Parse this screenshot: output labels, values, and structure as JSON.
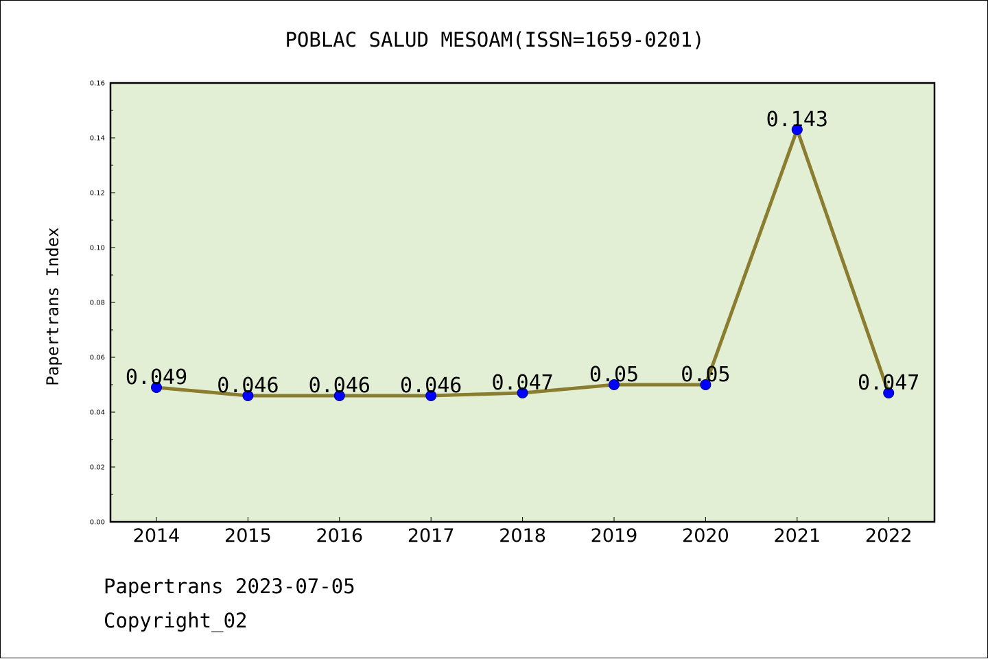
{
  "chart_data": {
    "type": "line",
    "title": "POBLAC SALUD MESOAM(ISSN=1659-0201)",
    "ylabel": "Papertrans Index",
    "xlabel": "",
    "x": [
      "2014",
      "2015",
      "2016",
      "2017",
      "2018",
      "2019",
      "2020",
      "2021",
      "2022"
    ],
    "series": [
      {
        "values": [
          0.049,
          0.046,
          0.046,
          0.046,
          0.047,
          0.05,
          0.05,
          0.143,
          0.047
        ],
        "labels": [
          "0.049",
          "0.046",
          "0.046",
          "0.046",
          "0.047",
          "0.05",
          "0.05",
          "0.143",
          "0.047"
        ]
      }
    ],
    "ylim": [
      0,
      0.16
    ],
    "yticks": [
      "0.00",
      "0.02",
      "0.04",
      "0.06",
      "0.08",
      "0.10",
      "0.12",
      "0.14",
      "0.16"
    ],
    "grid": false,
    "colors": {
      "plot_background": "#e2efd4",
      "line": "#8b7d30",
      "marker": "#0000ff",
      "marker_edge": "#00008b"
    }
  },
  "footer": {
    "line1": "Papertrans 2023-07-05",
    "line2": "Copyright_02"
  }
}
